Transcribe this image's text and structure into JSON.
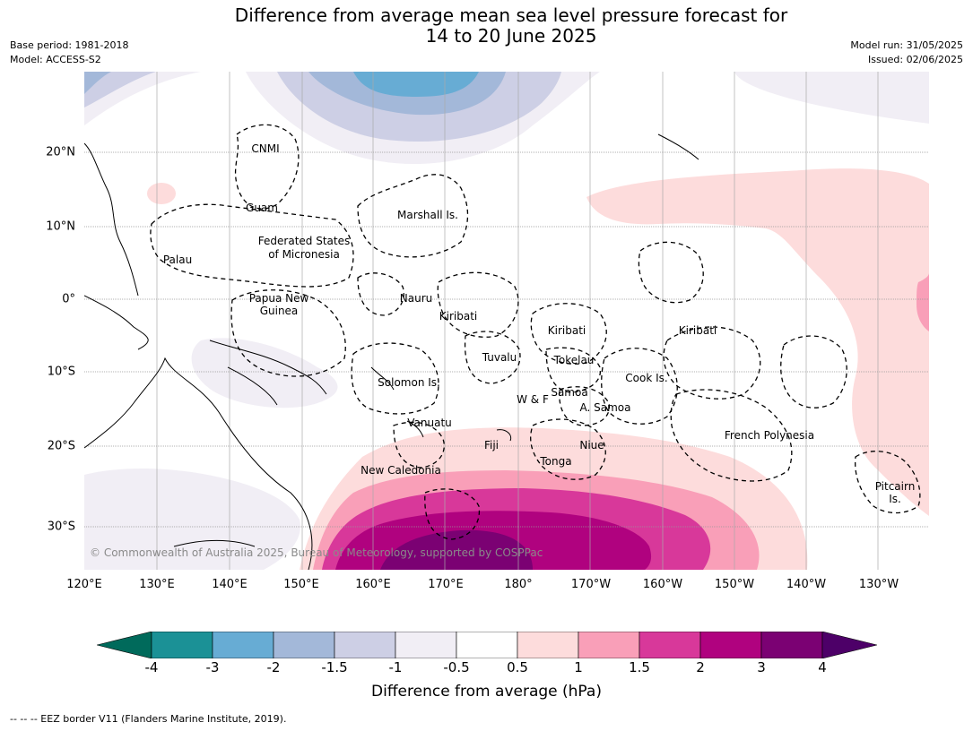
{
  "title_line1": "Difference from average mean sea level pressure forecast for",
  "title_line2": "14 to 20 June 2025",
  "meta_left": {
    "base_period": "Base period: 1981-2018",
    "model": "Model: ACCESS-S2"
  },
  "meta_right": {
    "model_run": "Model run: 31/05/2025",
    "issued": "Issued: 02/06/2025"
  },
  "lon_labels": [
    "120°E",
    "130°E",
    "140°E",
    "150°E",
    "160°E",
    "170°E",
    "180°",
    "170°W",
    "160°W",
    "150°W",
    "140°W",
    "130°W"
  ],
  "lat_labels": [
    "20°N",
    "10°N",
    "0°",
    "10°S",
    "20°S",
    "30°S"
  ],
  "places": [
    "CNMI",
    "Guam",
    "Marshall Is.",
    "Palau",
    "Federated States",
    "of Micronesia",
    "Papua New",
    "Guinea",
    "Nauru",
    "Kiribati",
    "Kiribati",
    "Kiribati",
    "Tuvalu",
    "Tokelau",
    "Cook Is.",
    "Solomon Is.",
    "W & F",
    "Samoa",
    "A. Samoa",
    "Vanuatu",
    "Fiji",
    "Niue",
    "Tonga",
    "French Polynesia",
    "New Caledonia",
    "Pitcairn",
    "Is."
  ],
  "copyright": "© Commonwealth of Australia 2025, Bureau of Meteorology, supported by COSPPac",
  "colorbar": {
    "ticks": [
      "-4",
      "-3",
      "-2",
      "-1.5",
      "-1",
      "-0.5",
      "0.5",
      "1",
      "1.5",
      "2",
      "3",
      "4"
    ],
    "colors": [
      "#006a5b",
      "#1b9196",
      "#67acd4",
      "#a3b8d9",
      "#cdcfe5",
      "#f1eef5",
      "#ffffff",
      "#fddcdc",
      "#f99fb8",
      "#d8389a",
      "#b0027f",
      "#7b0173",
      "#4d0068"
    ],
    "label": "Difference from average (hPa)"
  },
  "footer": "--  --  -- EEZ border V11 (Flanders Marine Institute, 2019)."
}
